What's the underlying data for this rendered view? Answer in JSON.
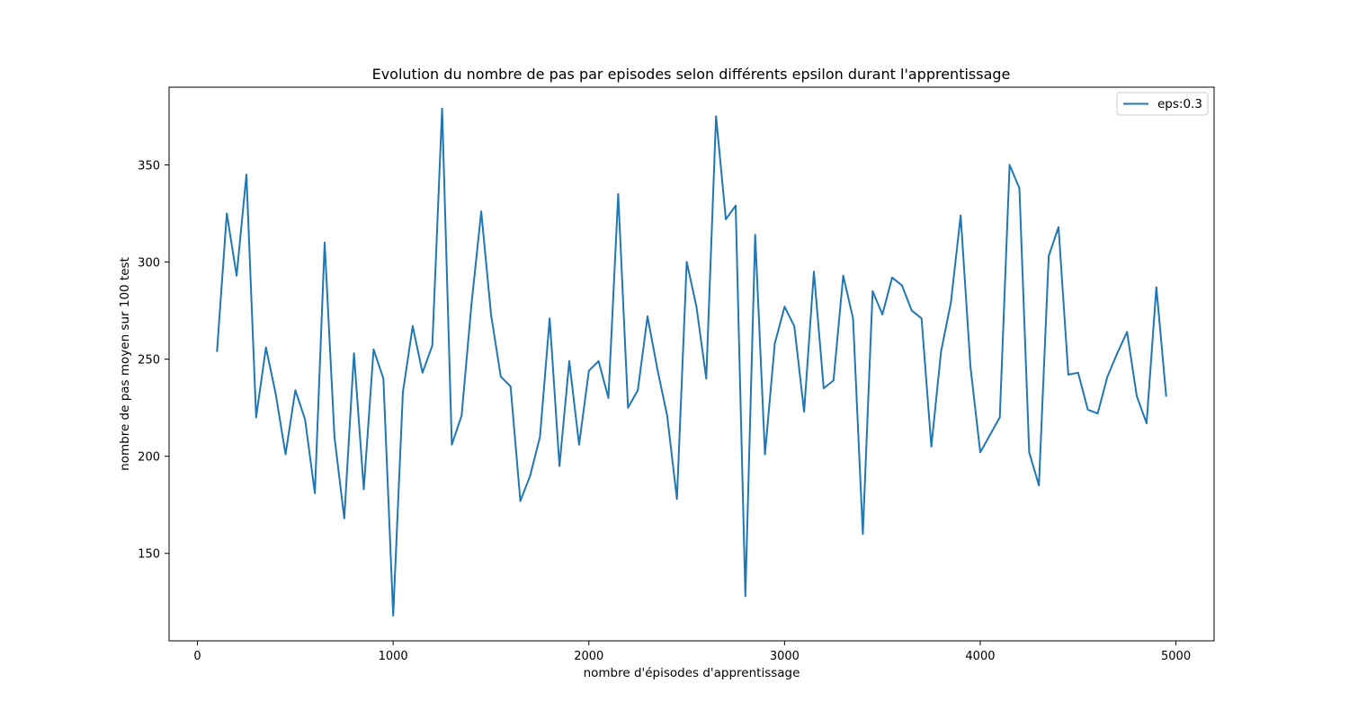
{
  "chart_data": {
    "type": "line",
    "title": "Evolution du nombre de pas par episodes selon différents epsilon durant l'apprentissage",
    "xlabel": "nombre d'épisodes d'apprentissage",
    "ylabel": "nombre de pas moyen sur 100 test",
    "xlim": [
      -145,
      5195
    ],
    "ylim": [
      105,
      390
    ],
    "xticks": [
      0,
      1000,
      2000,
      3000,
      4000,
      5000
    ],
    "xtick_labels": [
      "0",
      "1000",
      "2000",
      "3000",
      "4000",
      "5000"
    ],
    "yticks": [
      150,
      200,
      250,
      300,
      350
    ],
    "ytick_labels": [
      "150",
      "200",
      "250",
      "300",
      "350"
    ],
    "grid": false,
    "legend_position": "top-right",
    "colors": {
      "series": "#1f77b4",
      "axes": "#000000",
      "background": "#ffffff"
    },
    "series": [
      {
        "name": "eps:0.3",
        "x": [
          100,
          150,
          200,
          250,
          300,
          350,
          400,
          450,
          500,
          550,
          600,
          650,
          700,
          750,
          800,
          850,
          900,
          950,
          1000,
          1050,
          1100,
          1150,
          1200,
          1250,
          1300,
          1350,
          1400,
          1450,
          1500,
          1550,
          1600,
          1650,
          1700,
          1750,
          1800,
          1850,
          1900,
          1950,
          2000,
          2050,
          2100,
          2150,
          2200,
          2250,
          2300,
          2350,
          2400,
          2450,
          2500,
          2550,
          2600,
          2650,
          2700,
          2750,
          2800,
          2850,
          2900,
          2950,
          3000,
          3050,
          3100,
          3150,
          3200,
          3250,
          3300,
          3350,
          3400,
          3450,
          3500,
          3550,
          3600,
          3650,
          3700,
          3750,
          3800,
          3850,
          3900,
          3950,
          4000,
          4050,
          4100,
          4150,
          4200,
          4250,
          4300,
          4350,
          4400,
          4450,
          4500,
          4550,
          4600,
          4650,
          4700,
          4750,
          4800,
          4850,
          4900,
          4950
        ],
        "y": [
          254,
          325,
          293,
          345,
          220,
          256,
          232,
          201,
          234,
          219,
          181,
          310,
          210,
          168,
          253,
          183,
          255,
          240,
          118,
          233,
          267,
          243,
          257,
          379,
          206,
          221,
          278,
          326,
          273,
          241,
          236,
          177,
          190,
          210,
          271,
          195,
          249,
          206,
          244,
          249,
          230,
          335,
          225,
          234,
          272,
          245,
          221,
          178,
          300,
          277,
          240,
          375,
          322,
          329,
          128,
          314,
          201,
          258,
          277,
          267,
          223,
          295,
          235,
          239,
          293,
          271,
          160,
          285,
          273,
          292,
          288,
          275,
          271,
          205,
          254,
          279,
          324,
          246,
          202,
          211,
          220,
          350,
          338,
          202,
          185,
          303,
          318,
          242,
          243,
          224,
          222,
          241,
          253,
          264,
          231,
          217,
          287,
          231
        ]
      }
    ]
  }
}
